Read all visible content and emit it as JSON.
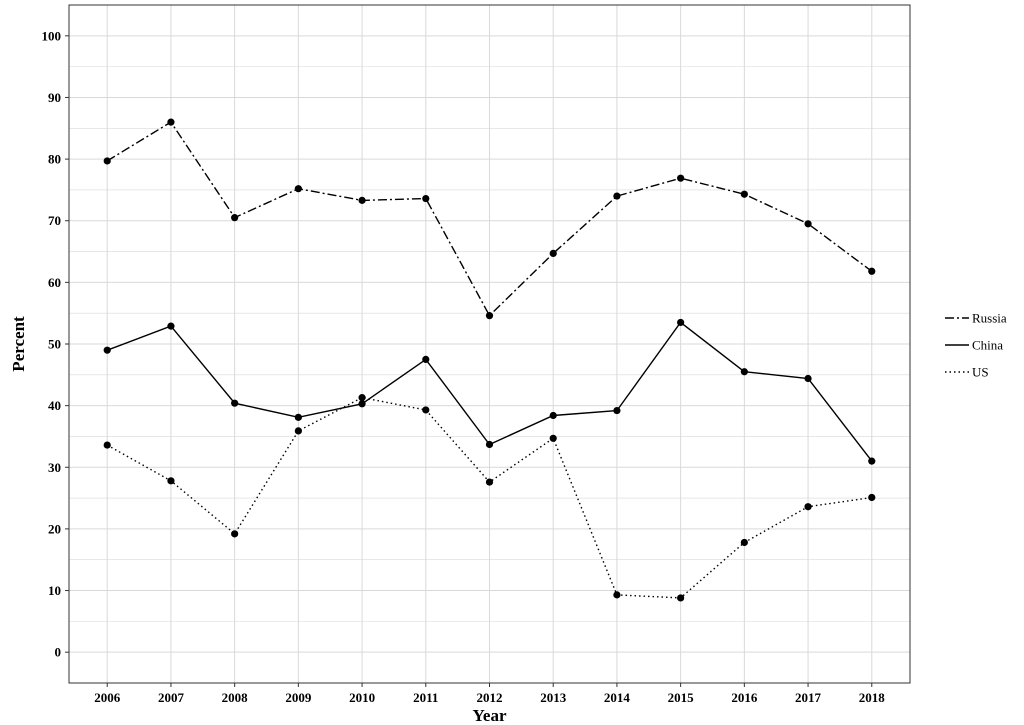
{
  "chart_data": {
    "type": "line",
    "title": "",
    "xlabel": "Year",
    "ylabel": "Percent",
    "x": [
      2006,
      2007,
      2008,
      2009,
      2010,
      2011,
      2012,
      2013,
      2014,
      2015,
      2016,
      2017,
      2018
    ],
    "ylim": [
      -5,
      105
    ],
    "y_ticks": [
      0,
      10,
      20,
      30,
      40,
      50,
      60,
      70,
      80,
      90,
      100
    ],
    "grid": true,
    "legend_position": "right",
    "series": [
      {
        "name": "Russia",
        "line_style": "dashdot",
        "values": [
          79.7,
          86.0,
          70.5,
          75.2,
          73.3,
          73.6,
          54.6,
          64.7,
          74.0,
          76.9,
          74.3,
          69.5,
          61.8
        ]
      },
      {
        "name": "China",
        "line_style": "solid",
        "values": [
          49.0,
          52.9,
          40.4,
          38.1,
          40.3,
          47.5,
          33.7,
          38.4,
          39.2,
          53.5,
          45.5,
          44.4,
          31.0
        ]
      },
      {
        "name": "US",
        "line_style": "dotted",
        "values": [
          33.6,
          27.8,
          19.2,
          35.9,
          41.3,
          39.3,
          27.6,
          34.7,
          9.3,
          8.8,
          17.8,
          23.6,
          25.1
        ]
      }
    ],
    "colors": {
      "line": "#000000",
      "grid": "#d9d9d9",
      "background": "#ffffff"
    }
  }
}
